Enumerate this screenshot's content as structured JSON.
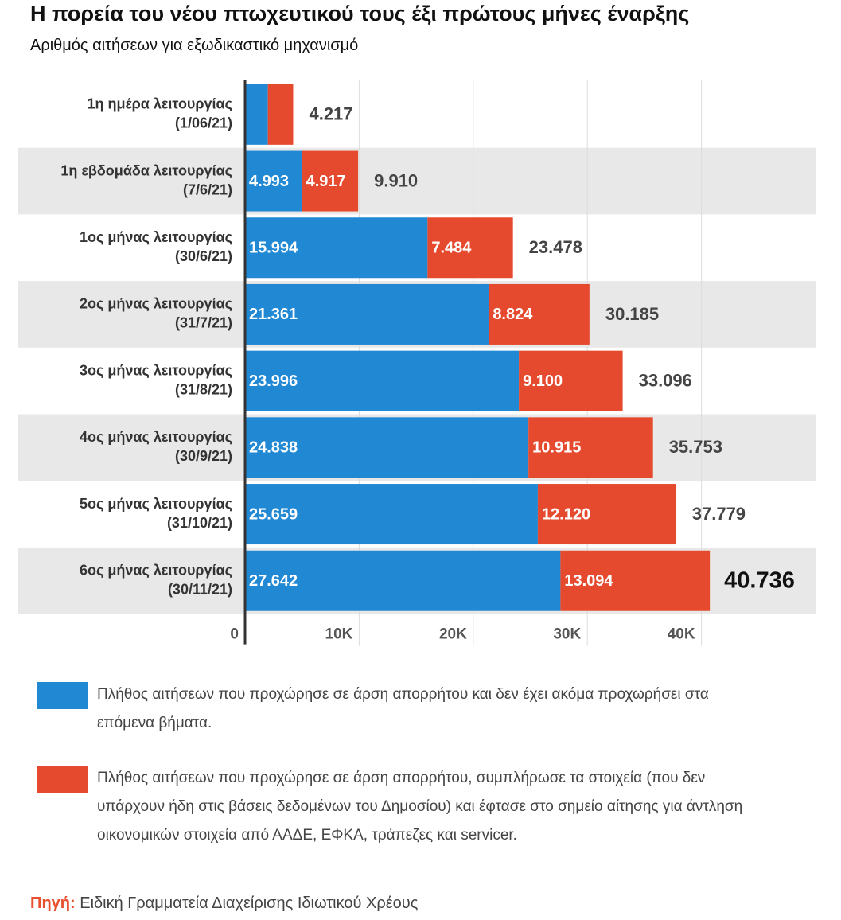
{
  "chart_data": {
    "type": "stacked-barh",
    "title": "Η πορεία του νέου πτωχευτικού τους έξι πρώτους μήνες έναρξης",
    "subtitle": "Αριθμός αιτήσεων για εξωδικαστικό μηχανισμό",
    "categories": [
      [
        "1η ημέρα λειτουργίας",
        "(1/06/21)"
      ],
      [
        "1η εβδομάδα λειτουργίας",
        "(7/6/21)"
      ],
      [
        "1ος μήνας λειτουργίας",
        "(30/6/21)"
      ],
      [
        "2ος μήνας λειτουργίας",
        "(31/7/21)"
      ],
      [
        "3ος μήνας λειτουργίας",
        "(31/8/21)"
      ],
      [
        "4ος μήνας λειτουργίας",
        "(30/9/21)"
      ],
      [
        "5ος μήνας λειτουργίας",
        "(31/10/21)"
      ],
      [
        "6ος μήνας λειτουργίας",
        "(30/11/21)"
      ]
    ],
    "series": [
      {
        "name": "Πλήθος αιτήσεων που προχώρησε σε άρση απορρήτου και δεν έχει ακόμα προχωρήσει στα επόμενα βήματα.",
        "color": "#2188d4",
        "values": [
          2000,
          4993,
          15994,
          21361,
          23996,
          24838,
          25659,
          27642
        ],
        "value_labels": [
          null,
          "4.993",
          "15.994",
          "21.361",
          "23.996",
          "24.838",
          "25.659",
          "27.642"
        ]
      },
      {
        "name": "Πλήθος αιτήσεων που προχώρησε σε άρση απορρήτου, συμπλήρωσε τα στοιχεία (που δεν υπάρχουν ήδη στις βάσεις δεδομένων του Δημοσίου) και έφτασε στο σημείο αίτησης για άντληση οικονομικών στοιχεία από ΑΑΔΕ, ΕΦΚΑ, τράπεζες και servicer.",
        "color": "#e64a2e",
        "values": [
          2217,
          4917,
          7484,
          8824,
          9100,
          10915,
          12120,
          13094
        ],
        "value_labels": [
          null,
          "4.917",
          "7.484",
          "8.824",
          "9.100",
          "10.915",
          "12.120",
          "13.094"
        ]
      }
    ],
    "totals": {
      "values": [
        4217,
        9910,
        23478,
        30185,
        33096,
        35753,
        37779,
        40736
      ],
      "value_labels": [
        "4.217",
        "9.910",
        "23.478",
        "30.185",
        "33.096",
        "35.753",
        "37.779",
        "40.736"
      ]
    },
    "xlim": [
      0,
      50000
    ],
    "xticks": [
      0,
      {
        "value": 10000,
        "label": "10K"
      },
      {
        "value": 20000,
        "label": "20K"
      },
      {
        "value": 30000,
        "label": "30K"
      },
      {
        "value": 40000,
        "label": "40K"
      }
    ],
    "grid": true,
    "source_label": "Πηγή:",
    "source": "Ειδική Γραμματεία Διαχείρισης Ιδιωτικού Χρέους"
  }
}
